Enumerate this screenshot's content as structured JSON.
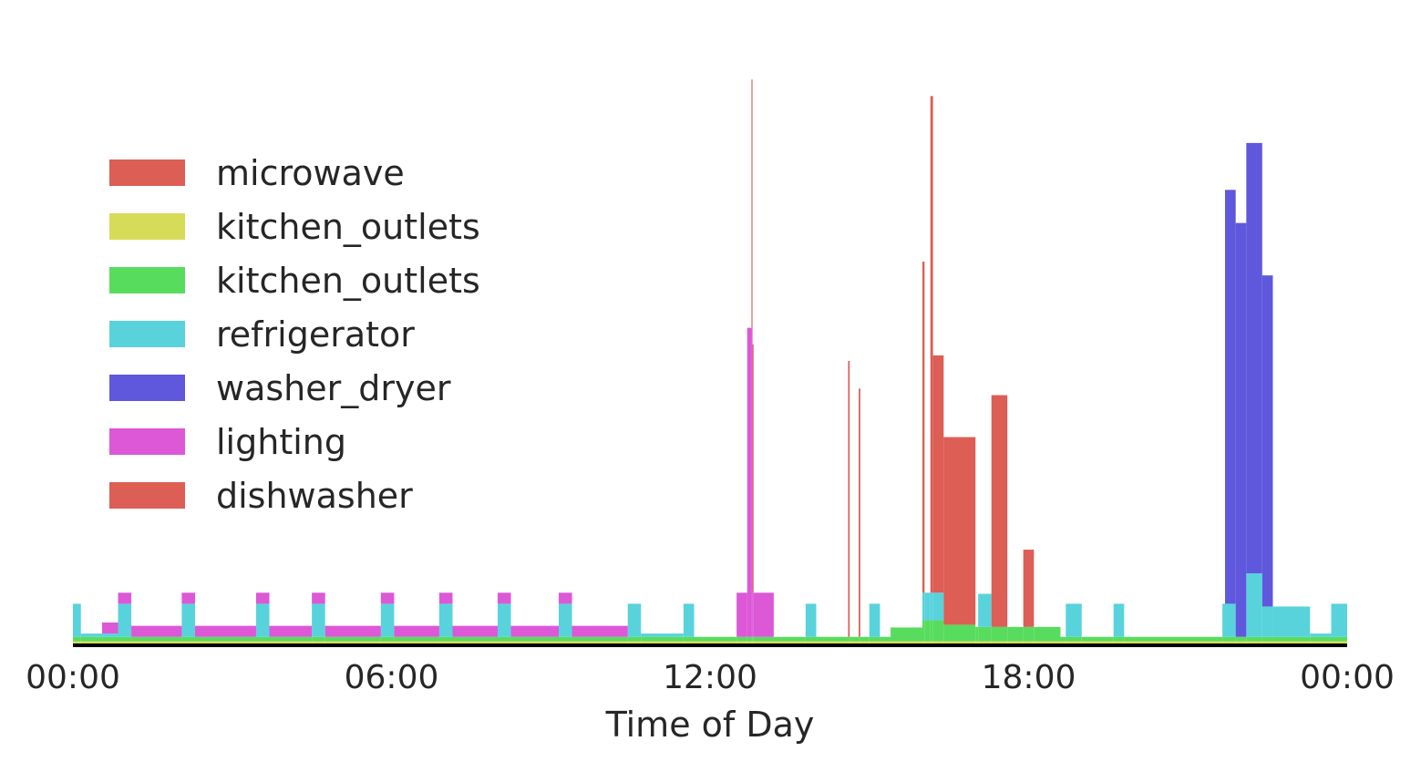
{
  "chart_data": {
    "type": "area",
    "stacked": true,
    "xlabel": "Time of Day",
    "ylabel": "",
    "x_unit": "hours",
    "xlim": [
      0,
      24
    ],
    "ylim": [
      0,
      1100
    ],
    "grid": false,
    "legend_position": "upper-left",
    "x_ticks": [
      {
        "value": 0,
        "label": "00:00"
      },
      {
        "value": 6,
        "label": "06:00"
      },
      {
        "value": 12,
        "label": "12:00"
      },
      {
        "value": 18,
        "label": "18:00"
      },
      {
        "value": 24,
        "label": "00:00"
      }
    ],
    "legend": [
      {
        "label": "microwave",
        "color": "#dc5e55"
      },
      {
        "label": "kitchen_outlets",
        "color": "#d7dc58"
      },
      {
        "label": "kitchen_outlets",
        "color": "#58dc5e"
      },
      {
        "label": "refrigerator",
        "color": "#58d3dc"
      },
      {
        "label": "washer_dryer",
        "color": "#5f58dc"
      },
      {
        "label": "lighting",
        "color": "#dc58d7"
      },
      {
        "label": "dishwasher",
        "color": "#dc5e55"
      }
    ],
    "series": [
      {
        "name": "kitchen_outlets",
        "color": "#d7dc58",
        "segments": [
          {
            "start": 0,
            "end": 24,
            "value": 4
          }
        ]
      },
      {
        "name": "kitchen_outlets",
        "color": "#58dc5e",
        "segments": [
          {
            "start": 0,
            "end": 15.4,
            "value": 8
          },
          {
            "start": 15.4,
            "end": 16.0,
            "value": 25
          },
          {
            "start": 16.0,
            "end": 16.4,
            "value": 38
          },
          {
            "start": 16.4,
            "end": 17.0,
            "value": 30
          },
          {
            "start": 17.0,
            "end": 18.6,
            "value": 26
          },
          {
            "start": 18.6,
            "end": 24,
            "value": 8
          }
        ]
      },
      {
        "name": "refrigerator",
        "color": "#58d3dc",
        "segments": [
          {
            "start": 0,
            "end": 0.15,
            "value": 60
          },
          {
            "start": 0.15,
            "end": 0.55,
            "value": 6
          },
          {
            "start": 0.55,
            "end": 0.85,
            "value": 6
          },
          {
            "start": 0.85,
            "end": 1.1,
            "value": 60
          },
          {
            "start": 2.05,
            "end": 2.3,
            "value": 60
          },
          {
            "start": 3.45,
            "end": 3.7,
            "value": 60
          },
          {
            "start": 4.5,
            "end": 4.75,
            "value": 60
          },
          {
            "start": 5.8,
            "end": 6.05,
            "value": 60
          },
          {
            "start": 6.9,
            "end": 7.15,
            "value": 60
          },
          {
            "start": 8.0,
            "end": 8.25,
            "value": 60
          },
          {
            "start": 9.15,
            "end": 9.4,
            "value": 60
          },
          {
            "start": 10.45,
            "end": 10.7,
            "value": 60
          },
          {
            "start": 10.7,
            "end": 11.5,
            "value": 6
          },
          {
            "start": 11.5,
            "end": 11.7,
            "value": 60
          },
          {
            "start": 13.8,
            "end": 14.0,
            "value": 60
          },
          {
            "start": 15.0,
            "end": 15.2,
            "value": 60
          },
          {
            "start": 16.0,
            "end": 16.4,
            "value": 50
          },
          {
            "start": 17.05,
            "end": 17.3,
            "value": 60
          },
          {
            "start": 18.7,
            "end": 19.0,
            "value": 60
          },
          {
            "start": 19.6,
            "end": 19.8,
            "value": 60
          },
          {
            "start": 21.65,
            "end": 21.9,
            "value": 60
          },
          {
            "start": 22.1,
            "end": 22.4,
            "value": 115
          },
          {
            "start": 22.4,
            "end": 23.3,
            "value": 55
          },
          {
            "start": 23.3,
            "end": 23.7,
            "value": 6
          },
          {
            "start": 23.7,
            "end": 24,
            "value": 60
          }
        ]
      },
      {
        "name": "washer_dryer",
        "color": "#5f58dc",
        "segments": [
          {
            "start": 21.7,
            "end": 22.1,
            "value": 750
          },
          {
            "start": 22.1,
            "end": 22.4,
            "value": 780
          },
          {
            "start": 22.4,
            "end": 22.6,
            "value": 600
          }
        ]
      },
      {
        "name": "lighting",
        "color": "#dc58d7",
        "segments": [
          {
            "start": 0.55,
            "end": 10.45,
            "value": 20
          },
          {
            "start": 0.85,
            "end": 1.1,
            "value": 20
          },
          {
            "start": 2.05,
            "end": 2.3,
            "value": 20
          },
          {
            "start": 3.45,
            "end": 3.7,
            "value": 20
          },
          {
            "start": 4.5,
            "end": 4.75,
            "value": 20
          },
          {
            "start": 5.8,
            "end": 6.05,
            "value": 20
          },
          {
            "start": 6.9,
            "end": 7.15,
            "value": 20
          },
          {
            "start": 8.0,
            "end": 8.25,
            "value": 20
          },
          {
            "start": 9.15,
            "end": 9.4,
            "value": 20
          },
          {
            "start": 12.5,
            "end": 13.2,
            "value": 80
          },
          {
            "start": 12.7,
            "end": 12.8,
            "value": 560
          }
        ]
      },
      {
        "name": "microwave",
        "color": "#dc5e55",
        "segments": [
          {
            "start": 12.78,
            "end": 12.82,
            "value": 450
          },
          {
            "start": 14.6,
            "end": 14.63,
            "value": 500
          },
          {
            "start": 14.8,
            "end": 14.83,
            "value": 450
          },
          {
            "start": 16.0,
            "end": 16.04,
            "value": 600
          },
          {
            "start": 16.15,
            "end": 16.2,
            "value": 900
          }
        ]
      },
      {
        "name": "dishwasher",
        "color": "#dc5e55",
        "segments": [
          {
            "start": 16.2,
            "end": 16.4,
            "value": 430
          },
          {
            "start": 16.4,
            "end": 17.0,
            "value": 340
          },
          {
            "start": 17.3,
            "end": 17.6,
            "value": 420
          },
          {
            "start": 17.9,
            "end": 18.1,
            "value": 140
          }
        ]
      }
    ]
  }
}
